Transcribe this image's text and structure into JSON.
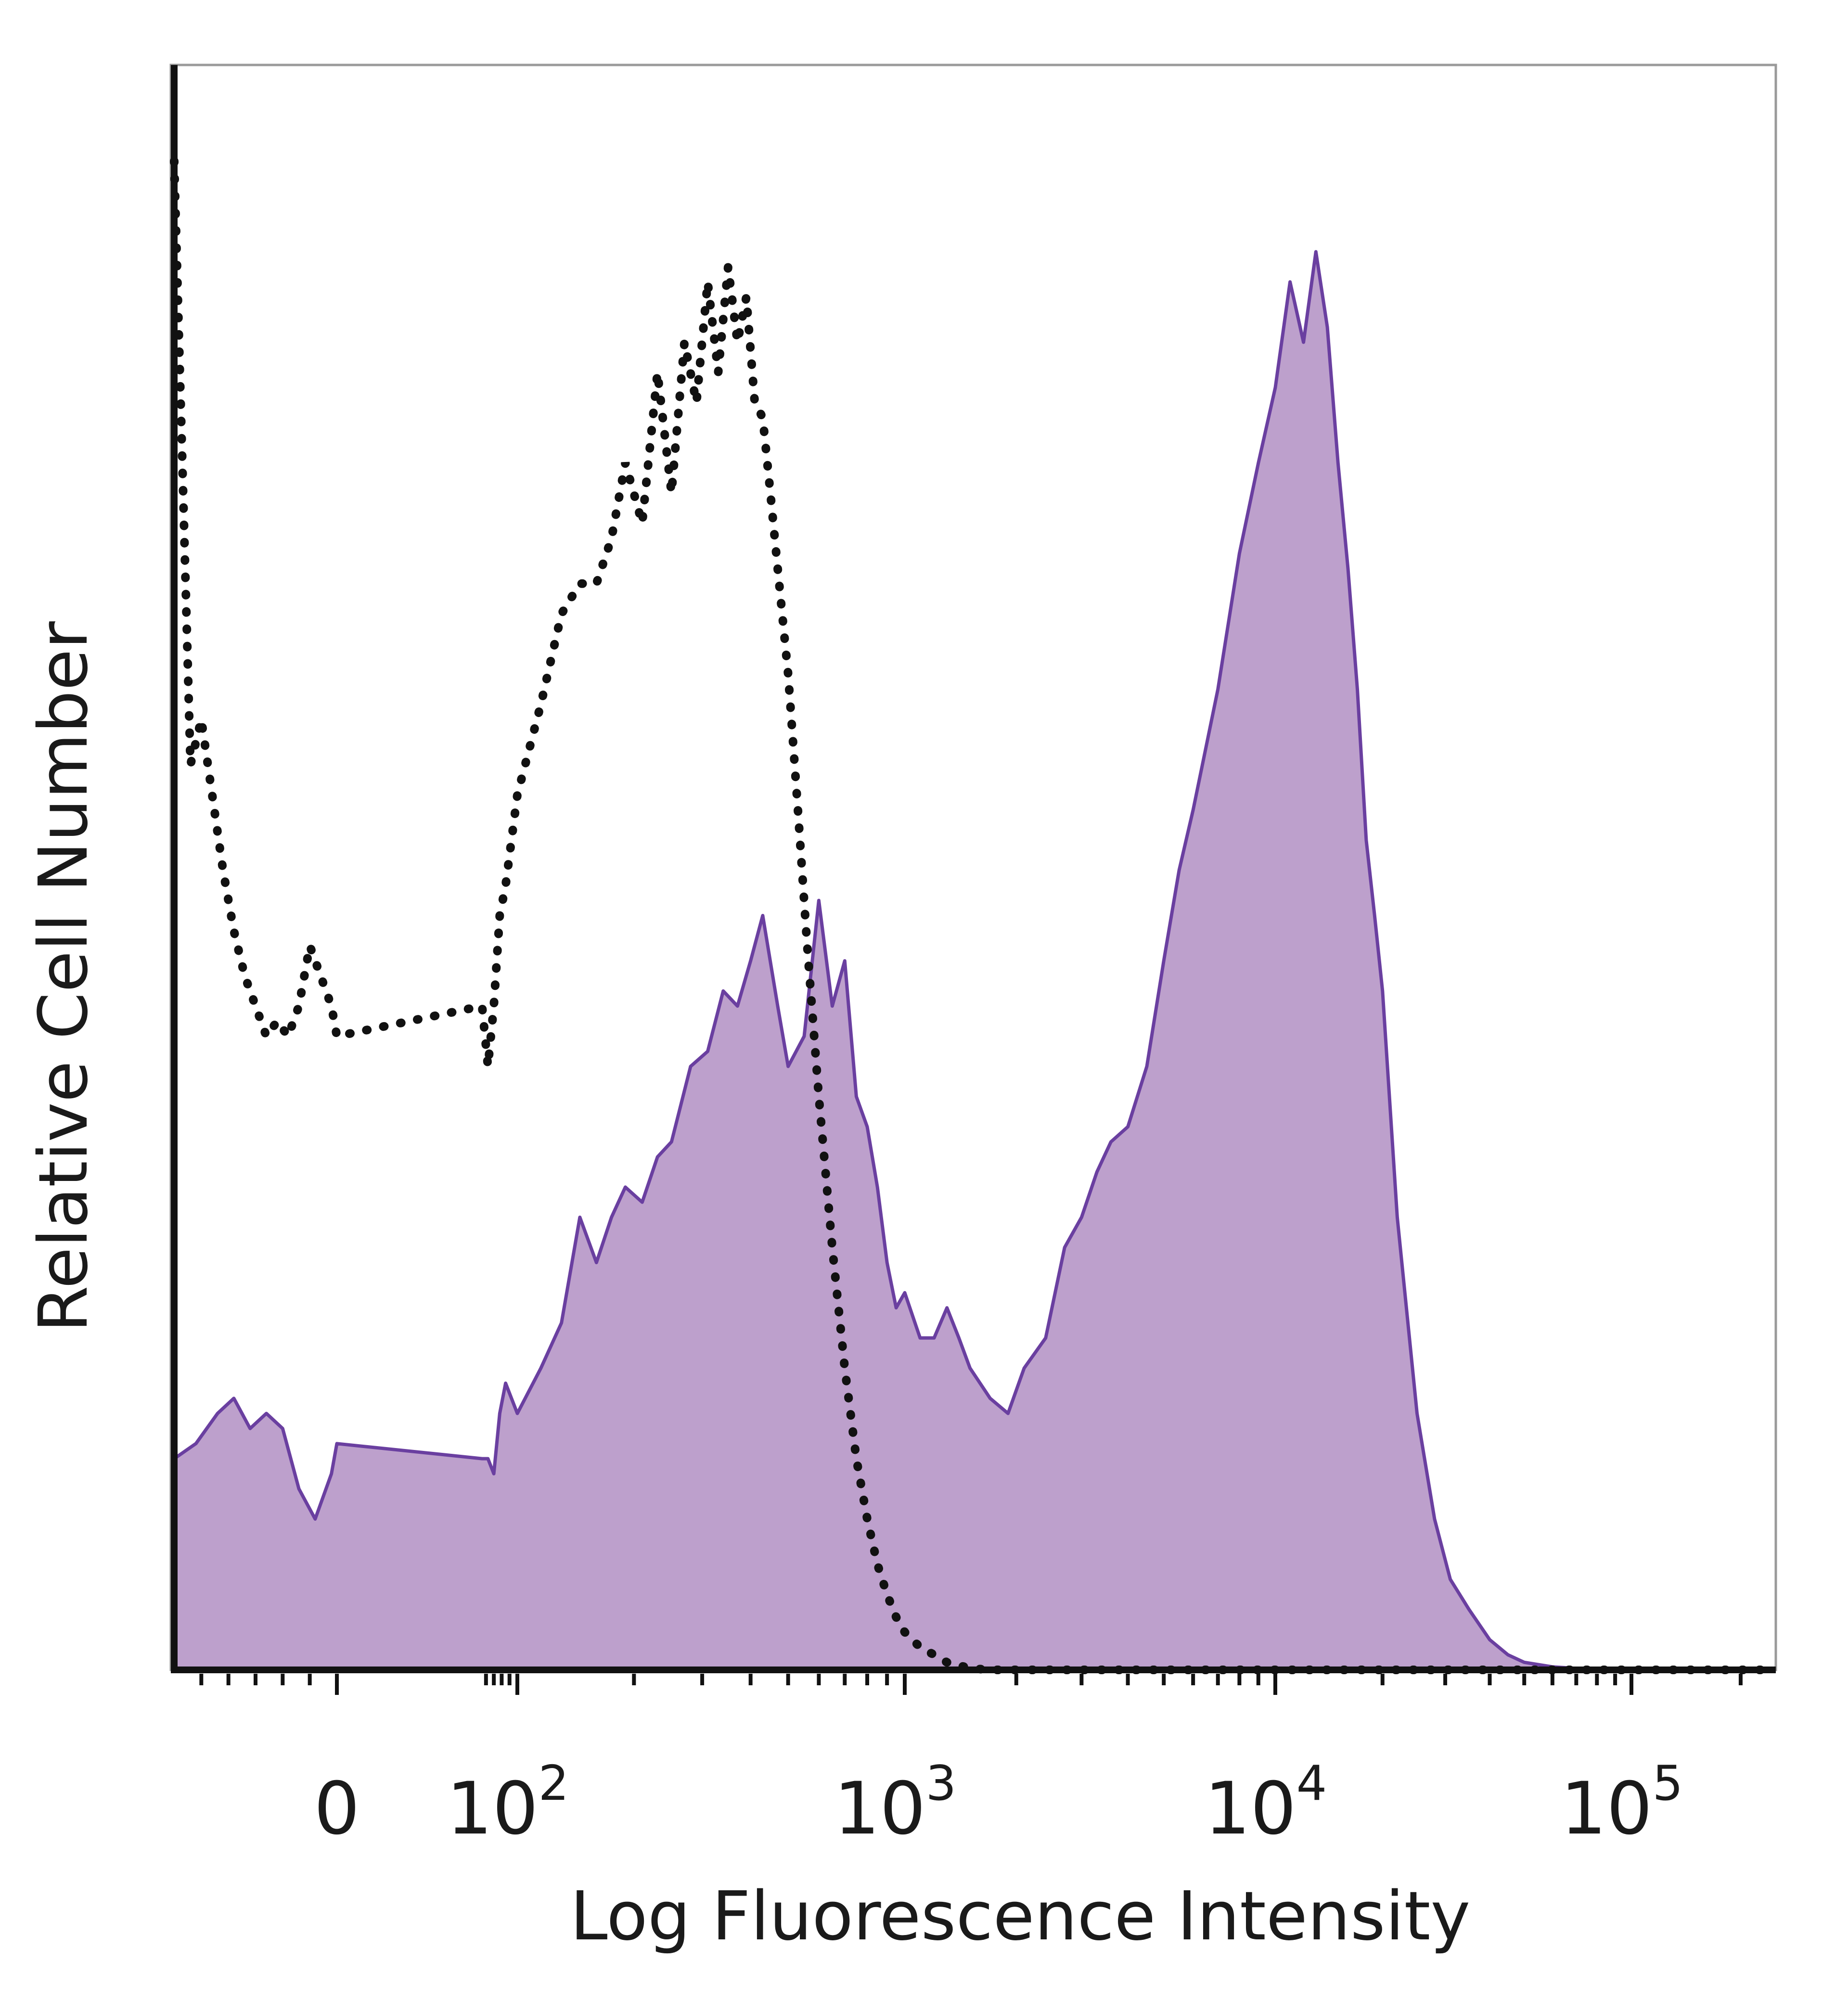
{
  "chart_data": {
    "type": "area",
    "xlabel": "Log Fluorescence Intensity",
    "ylabel": "Relative Cell Number",
    "x_scale": "biexponential",
    "xlim": [
      -300,
      250000
    ],
    "ylim": [
      0,
      100
    ],
    "grid": false,
    "x_ticks": [
      {
        "value": 0,
        "base": "0",
        "exp": ""
      },
      {
        "value": 100,
        "base": "10",
        "exp": "2"
      },
      {
        "value": 1000,
        "base": "10",
        "exp": "3"
      },
      {
        "value": 10000,
        "base": "10",
        "exp": "4"
      },
      {
        "value": 100000,
        "base": "10",
        "exp": "5"
      }
    ],
    "series": [
      {
        "style": "filled-solid",
        "color": "#bda0cc",
        "stroke": "#6a3fa0",
        "x": [
          -300,
          -260,
          -220,
          -190,
          -160,
          -130,
          -100,
          -70,
          -40,
          -10,
          0,
          10,
          25,
          40,
          55,
          70,
          85,
          100,
          115,
          130,
          145,
          160,
          175,
          190,
          210,
          230,
          250,
          280,
          310,
          340,
          370,
          400,
          430,
          470,
          500,
          550,
          600,
          650,
          700,
          750,
          800,
          850,
          900,
          950,
          1000,
          1100,
          1200,
          1300,
          1400,
          1500,
          1700,
          1900,
          2100,
          2400,
          2700,
          3000,
          3300,
          3600,
          4000,
          4500,
          5000,
          5500,
          6000,
          7000,
          8000,
          9000,
          10000,
          11000,
          12000,
          13000,
          14000,
          15000,
          16000,
          17000,
          18000,
          19000,
          20000,
          22000,
          25000,
          28000,
          31000,
          35000,
          40000,
          45000,
          50000,
          60000,
          70000,
          80000,
          90000,
          100000,
          120000,
          150000,
          200000,
          250000
        ],
        "values": [
          14,
          15,
          17,
          18,
          16,
          17,
          16,
          12,
          10,
          13,
          15,
          14,
          14,
          13,
          17,
          19,
          18,
          17,
          20,
          23,
          30,
          27,
          30,
          32,
          31,
          34,
          35,
          40,
          41,
          45,
          44,
          47,
          50,
          44,
          40,
          42,
          51,
          44,
          47,
          38,
          36,
          32,
          27,
          24,
          25,
          22,
          22,
          24,
          22,
          20,
          18,
          17,
          20,
          22,
          28,
          30,
          33,
          35,
          36,
          40,
          47,
          53,
          57,
          65,
          74,
          80,
          85,
          92,
          88,
          94,
          89,
          80,
          73,
          65,
          55,
          50,
          45,
          30,
          17,
          10,
          6,
          4,
          2,
          1,
          0.5,
          0.2,
          0.1,
          0,
          0,
          0,
          0,
          0,
          0,
          0
        ],
        "value_notes": ""
      },
      {
        "style": "dotted-outline",
        "color": "#111111",
        "x": [
          -300,
          -270,
          -250,
          -230,
          -210,
          -190,
          -170,
          -150,
          -130,
          -110,
          -90,
          -70,
          -50,
          -30,
          -10,
          0,
          10,
          25,
          40,
          55,
          70,
          85,
          100,
          115,
          130,
          145,
          160,
          175,
          190,
          210,
          230,
          250,
          270,
          290,
          310,
          330,
          350,
          370,
          390,
          410,
          430,
          450,
          470,
          500,
          530,
          560,
          600,
          650,
          700,
          750,
          800,
          850,
          900,
          950,
          1000,
          1100,
          1200,
          1300,
          1400,
          1500,
          1600,
          1700,
          1800,
          2000,
          2500,
          3000,
          5000,
          10000,
          50000,
          100000,
          250000
        ],
        "values": [
          100,
          60,
          63,
          58,
          53,
          49,
          46,
          44,
          42,
          43,
          42,
          44,
          48,
          46,
          44,
          42,
          44,
          40,
          44,
          50,
          52,
          55,
          58,
          64,
          70,
          72,
          72,
          75,
          80,
          76,
          86,
          78,
          88,
          84,
          92,
          86,
          93,
          88,
          91,
          84,
          83,
          78,
          73,
          66,
          57,
          48,
          38,
          28,
          20,
          14,
          10,
          7,
          5,
          3.5,
          2.5,
          1.5,
          1,
          0.5,
          0.3,
          0.1,
          0.05,
          0,
          0,
          0,
          0,
          0,
          0,
          0,
          0,
          0,
          0
        ]
      }
    ]
  }
}
